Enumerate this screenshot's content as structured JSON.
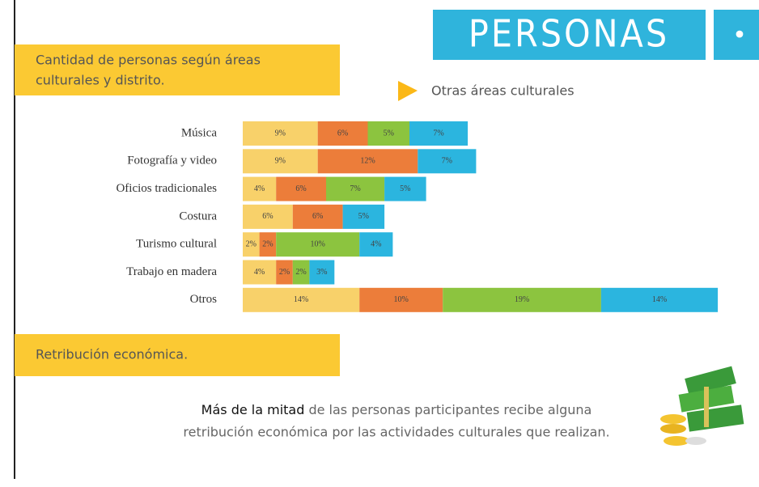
{
  "header": {
    "title": "PERSONAS",
    "mark": "•"
  },
  "section1": {
    "lines": [
      "Cantidad de personas según áreas",
      "culturales y distrito."
    ]
  },
  "subtitle": "Otras áreas culturales",
  "chart_data": {
    "type": "stacked-bar-horizontal",
    "categories": [
      "Música",
      "Fotografía y video",
      "Oficios tradicionales",
      "Costura",
      "Turismo cultural",
      "Trabajo en madera",
      "Otros"
    ],
    "series": [
      {
        "color": "#f8d16a",
        "values": [
          9,
          9,
          4,
          6,
          2,
          4,
          14
        ],
        "value_labels": [
          "9%",
          "9%",
          "4%",
          "6%",
          "2%",
          "4%",
          "14%"
        ]
      },
      {
        "color": "#ec7d3a",
        "values": [
          6,
          12,
          6,
          6,
          2,
          2,
          10
        ],
        "value_labels": [
          "6%",
          "12%",
          "6%",
          "6%",
          "2%",
          "2%",
          "10%"
        ]
      },
      {
        "color": "#8cc43f",
        "values": [
          5,
          null,
          7,
          null,
          10,
          2,
          19
        ],
        "value_labels": [
          "5%",
          null,
          "7%",
          null,
          "10%",
          "2%",
          "19%"
        ]
      },
      {
        "color": "#2bb5df",
        "values": [
          7,
          7,
          5,
          5,
          4,
          3,
          14
        ],
        "value_labels": [
          "7%",
          "7%",
          "5%",
          "5%",
          "4%",
          "3%",
          "14%"
        ]
      }
    ]
  },
  "section2": {
    "title": "Retribución económica."
  },
  "body": {
    "bold": "Más de la mitad",
    "rest": " de las personas participantes recibe alguna",
    "line2": "retribución económica por las actividades culturales que realizan."
  }
}
